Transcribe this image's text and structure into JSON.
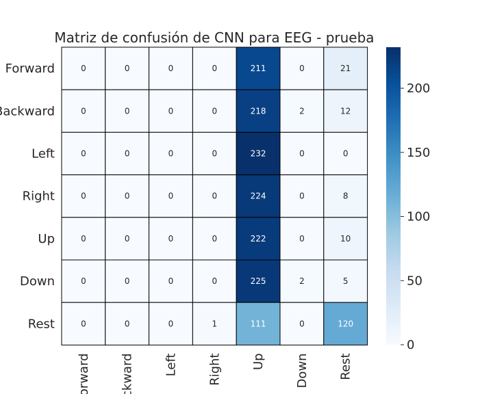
{
  "chart_data": {
    "type": "heatmap",
    "title": "Matriz de confusión de CNN para EEG - prueba",
    "rows": [
      "Forward",
      "Backward",
      "Left",
      "Right",
      "Up",
      "Down",
      "Rest"
    ],
    "columns": [
      "Forward",
      "Backward",
      "Left",
      "Right",
      "Up",
      "Down",
      "Rest"
    ],
    "values": [
      [
        0,
        0,
        0,
        0,
        211,
        0,
        21
      ],
      [
        0,
        0,
        0,
        0,
        218,
        2,
        12
      ],
      [
        0,
        0,
        0,
        0,
        232,
        0,
        0
      ],
      [
        0,
        0,
        0,
        0,
        224,
        0,
        8
      ],
      [
        0,
        0,
        0,
        0,
        222,
        0,
        10
      ],
      [
        0,
        0,
        0,
        0,
        225,
        2,
        5
      ],
      [
        0,
        0,
        0,
        1,
        111,
        0,
        120
      ]
    ],
    "colormap": "Blues",
    "colorbar": {
      "range": [
        0,
        232
      ],
      "ticks": [
        0,
        50,
        100,
        150,
        200
      ]
    },
    "colors": {
      "low": "#f7fbff",
      "high": "#08306b",
      "grid": "#000000"
    }
  }
}
